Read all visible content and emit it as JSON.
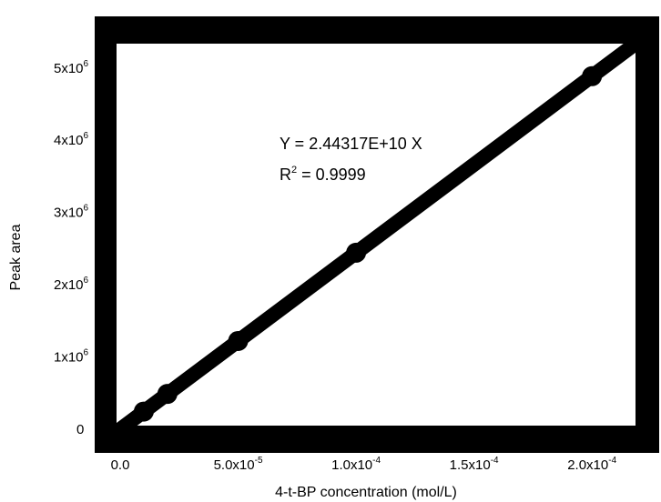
{
  "chart_data": {
    "type": "scatter",
    "xlabel": "4-t-BP concentration (mol/L)",
    "ylabel": "Peak area",
    "xlim": [
      0,
      0.00022
    ],
    "ylim": [
      0,
      5400000
    ],
    "grid": false,
    "x_ticks": [
      {
        "value": 0,
        "base": "0.0",
        "exp": ""
      },
      {
        "value": 5e-05,
        "base": "5.0x10",
        "exp": "-5"
      },
      {
        "value": 0.0001,
        "base": "1.0x10",
        "exp": "-4"
      },
      {
        "value": 0.00015,
        "base": "1.5x10",
        "exp": "-4"
      },
      {
        "value": 0.0002,
        "base": "2.0x10",
        "exp": "-4"
      }
    ],
    "y_ticks": [
      {
        "value": 0,
        "base": "0",
        "exp": ""
      },
      {
        "value": 1000000,
        "base": "1x10",
        "exp": "6"
      },
      {
        "value": 2000000,
        "base": "2x10",
        "exp": "6"
      },
      {
        "value": 3000000,
        "base": "3x10",
        "exp": "6"
      },
      {
        "value": 4000000,
        "base": "4x10",
        "exp": "6"
      },
      {
        "value": 5000000,
        "base": "5x10",
        "exp": "6"
      }
    ],
    "points": [
      {
        "x": 1e-05,
        "y": 244317
      },
      {
        "x": 2e-05,
        "y": 488634
      },
      {
        "x": 5e-05,
        "y": 1221585
      },
      {
        "x": 0.0001,
        "y": 2443170
      },
      {
        "x": 0.0002,
        "y": 4886340
      }
    ],
    "fit": {
      "slope": 24431700000,
      "x_end": 0.00022
    },
    "annotation": {
      "equation": "Y = 2.44317E+10 X",
      "r2_prefix": "R",
      "r2_exp": "2",
      "r2_value": " = 0.9999"
    }
  }
}
